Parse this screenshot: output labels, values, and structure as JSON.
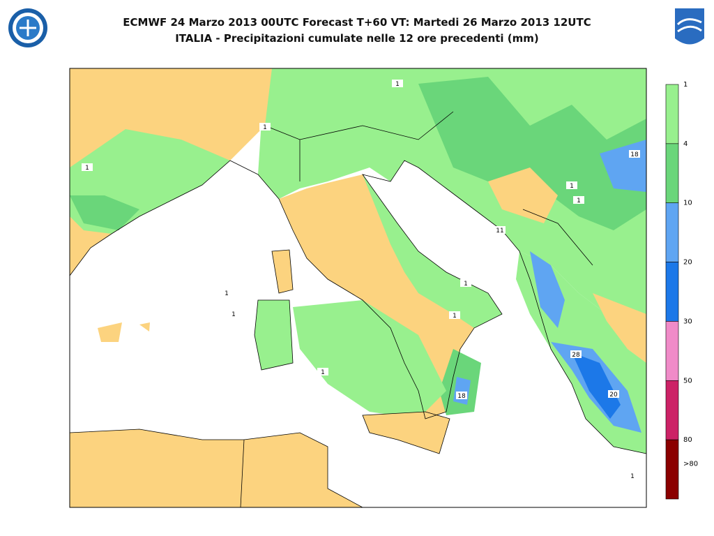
{
  "header": {
    "title": "ECMWF 24 Marzo 2013 00UTC Forecast T+60 VT: Martedi 26 Marzo 2013 12UTC",
    "subtitle": "ITALIA - Precipitazioni cumulate nelle 12 ore precedenti (mm)"
  },
  "legend": {
    "colors": [
      "#98f08e",
      "#6ad67a",
      "#5fa5f2",
      "#1c78e8",
      "#f08bc8",
      "#cc2266",
      "#8b0000"
    ],
    "labels": [
      1,
      4,
      10,
      20,
      30,
      50,
      80,
      ">80"
    ]
  },
  "map": {
    "contour_labels": [
      1,
      1,
      1,
      1,
      1,
      1,
      1,
      1,
      1,
      1,
      1,
      18,
      18,
      11,
      28,
      20
    ]
  }
}
